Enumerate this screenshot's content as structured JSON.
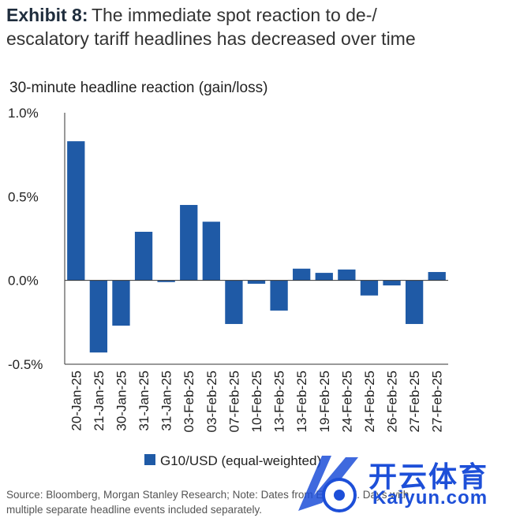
{
  "title": {
    "exhibit": "Exhibit 8:",
    "line1": "The immediate spot reaction to de-/",
    "line2": "escalatory tariff headlines has decreased over time"
  },
  "source": {
    "line1": "Source: Bloomberg, Morgan Stanley Research; Note: Dates from Exhibit 7. Days with",
    "line2": "multiple separate headline events included separately."
  },
  "watermark": {
    "cn": "开云体育",
    "en": "Kaiyun.com"
  },
  "colors": {
    "bar": "#1f5aa6",
    "axis": "#333333",
    "watermark": "#1d4fd8"
  },
  "chart_data": {
    "type": "bar",
    "title": "30-minute headline reaction (gain/loss)",
    "xlabel": "",
    "ylabel": "",
    "ylim": [
      -0.5,
      1.0
    ],
    "yticks": [
      1.0,
      0.5,
      0.0,
      -0.5
    ],
    "ytick_labels": [
      "1.0%",
      "0.5%",
      "0.0%",
      "-0.5%"
    ],
    "grid": false,
    "legend_position": "bottom",
    "categories": [
      "20-Jan-25",
      "21-Jan-25",
      "30-Jan-25",
      "31-Jan-25",
      "31-Jan-25",
      "03-Feb-25",
      "03-Feb-25",
      "07-Feb-25",
      "10-Feb-25",
      "13-Feb-25",
      "13-Feb-25",
      "19-Feb-25",
      "24-Feb-25",
      "24-Feb-25",
      "26-Feb-25",
      "27-Feb-25",
      "27-Feb-25"
    ],
    "series": [
      {
        "name": "G10/USD (equal-weighted)",
        "values": [
          0.83,
          -0.43,
          -0.27,
          0.29,
          -0.01,
          0.45,
          0.35,
          -0.26,
          -0.02,
          -0.18,
          0.07,
          0.045,
          0.065,
          -0.09,
          -0.03,
          -0.26,
          0.05
        ]
      }
    ]
  }
}
